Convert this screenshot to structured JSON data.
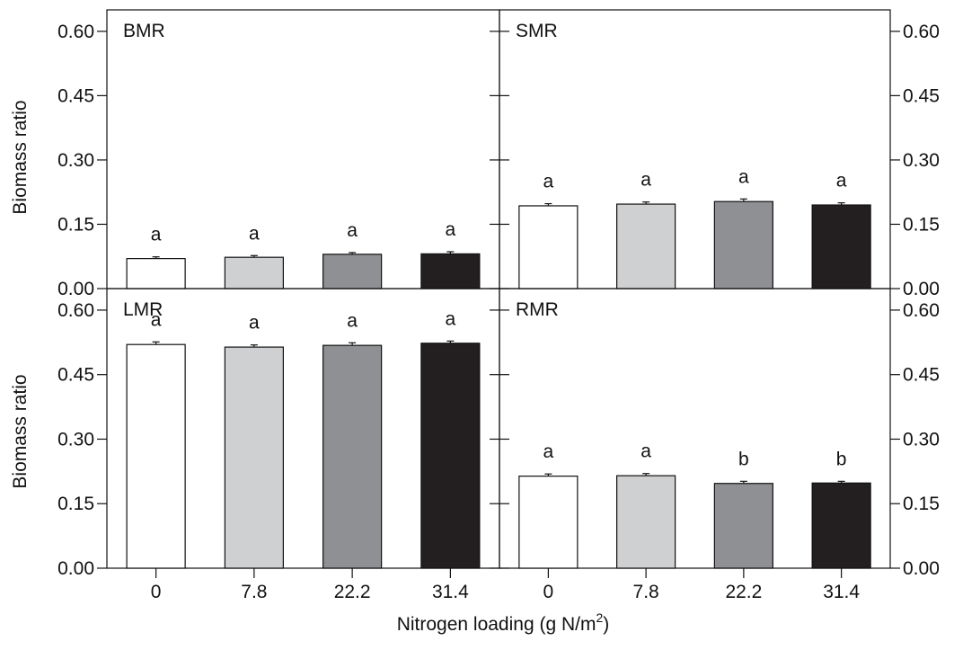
{
  "ylabel": "Biomass ratio",
  "xlabel_main": "Nitrogen loading (g N/m",
  "xlabel_sup": "2",
  "xlabel_tail": ")",
  "colors": {
    "axis": "#111111",
    "error": "#111111",
    "bars": [
      "#ffffff",
      "#cfd0d2",
      "#8e9094",
      "#231f20"
    ]
  },
  "chart_data": {
    "type": "bar",
    "categories": [
      "0",
      "7.8",
      "22.2",
      "31.4"
    ],
    "ylim": [
      0,
      0.65
    ],
    "yticks": [
      "0.00",
      "0.15",
      "0.30",
      "0.45",
      "0.60"
    ],
    "panels": [
      {
        "name": "BMR",
        "position": "top-left",
        "values": [
          0.07,
          0.073,
          0.08,
          0.081
        ],
        "errors": [
          0.004,
          0.004,
          0.004,
          0.005
        ],
        "letters": [
          "a",
          "a",
          "a",
          "a"
        ]
      },
      {
        "name": "SMR",
        "position": "top-right",
        "values": [
          0.193,
          0.197,
          0.203,
          0.195
        ],
        "errors": [
          0.005,
          0.005,
          0.006,
          0.005
        ],
        "letters": [
          "a",
          "a",
          "a",
          "a"
        ]
      },
      {
        "name": "LMR",
        "position": "bottom-left",
        "values": [
          0.52,
          0.514,
          0.518,
          0.523
        ],
        "errors": [
          0.006,
          0.005,
          0.006,
          0.005
        ],
        "letters": [
          "a",
          "a",
          "a",
          "a"
        ]
      },
      {
        "name": "RMR",
        "position": "bottom-right",
        "values": [
          0.214,
          0.215,
          0.197,
          0.198
        ],
        "errors": [
          0.005,
          0.005,
          0.005,
          0.004
        ],
        "letters": [
          "a",
          "a",
          "b",
          "b"
        ]
      }
    ]
  }
}
